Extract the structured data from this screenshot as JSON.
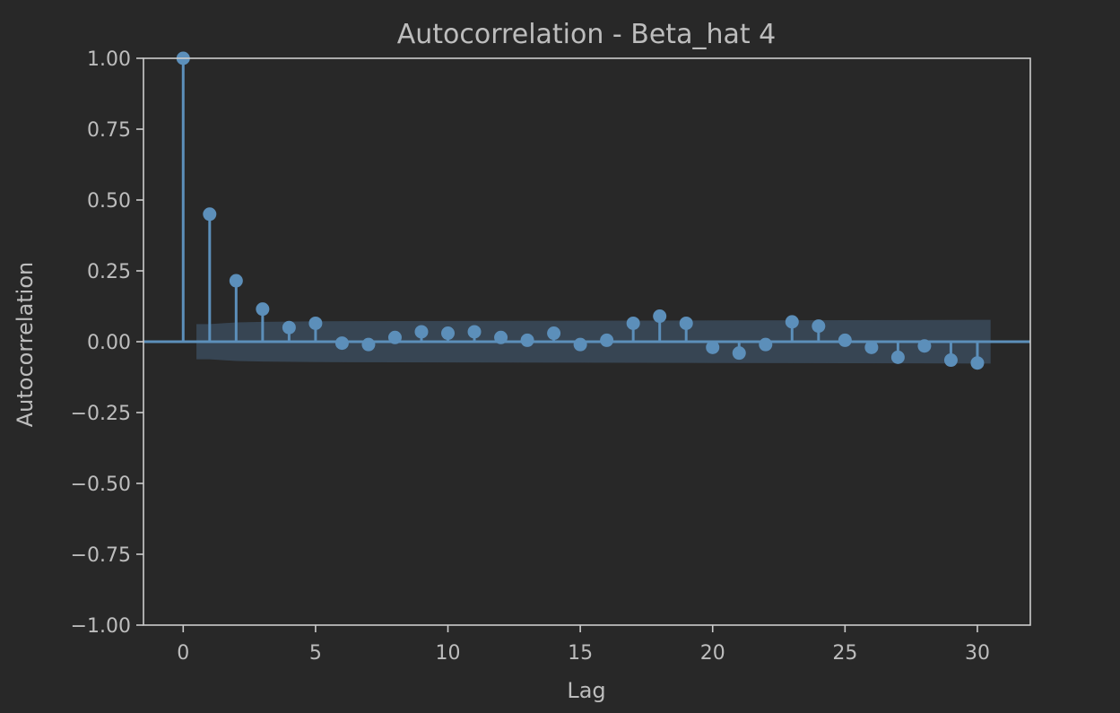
{
  "page": {
    "background": "#282828"
  },
  "colors": {
    "axis": "#cccccc",
    "text": "#bdbdbd",
    "stem": "#5c8fba",
    "band": "#3a4a5a"
  },
  "chart_data": {
    "type": "stem",
    "title": "Autocorrelation - Beta_hat 4",
    "xlabel": "Lag",
    "ylabel": "Autocorrelation",
    "xlim": [
      -1.5,
      32
    ],
    "ylim": [
      -1,
      1
    ],
    "xticks": [
      0,
      5,
      10,
      15,
      20,
      25,
      30
    ],
    "xtick_labels": [
      "0",
      "5",
      "10",
      "15",
      "20",
      "25",
      "30"
    ],
    "yticks": [
      1,
      0.75,
      0.5,
      0.25,
      0,
      -0.25,
      -0.5,
      -0.75,
      -1
    ],
    "ytick_labels": [
      "1.00",
      "0.75",
      "0.50",
      "0.25",
      "0.00",
      "−0.25",
      "−0.50",
      "−0.75",
      "−1.00"
    ],
    "lags": [
      0,
      1,
      2,
      3,
      4,
      5,
      6,
      7,
      8,
      9,
      10,
      11,
      12,
      13,
      14,
      15,
      16,
      17,
      18,
      19,
      20,
      21,
      22,
      23,
      24,
      25,
      26,
      27,
      28,
      29,
      30
    ],
    "values": [
      1.0,
      0.45,
      0.215,
      0.115,
      0.05,
      0.065,
      -0.005,
      -0.01,
      0.015,
      0.035,
      0.03,
      0.035,
      0.015,
      0.005,
      0.03,
      -0.01,
      0.005,
      0.065,
      0.09,
      0.065,
      -0.02,
      -0.04,
      -0.01,
      0.07,
      0.055,
      0.005,
      -0.02,
      -0.055,
      -0.015,
      -0.065,
      -0.075
    ],
    "confidence_band": {
      "lags": [
        0.5,
        1,
        2,
        3,
        5,
        10,
        15,
        20,
        25,
        30,
        30.5
      ],
      "upper": [
        0.062,
        0.062,
        0.068,
        0.07,
        0.072,
        0.073,
        0.074,
        0.075,
        0.076,
        0.077,
        0.077
      ],
      "lower": [
        -0.062,
        -0.062,
        -0.068,
        -0.07,
        -0.072,
        -0.073,
        -0.074,
        -0.075,
        -0.076,
        -0.077,
        -0.077
      ]
    },
    "grid": false,
    "legend": "none"
  }
}
